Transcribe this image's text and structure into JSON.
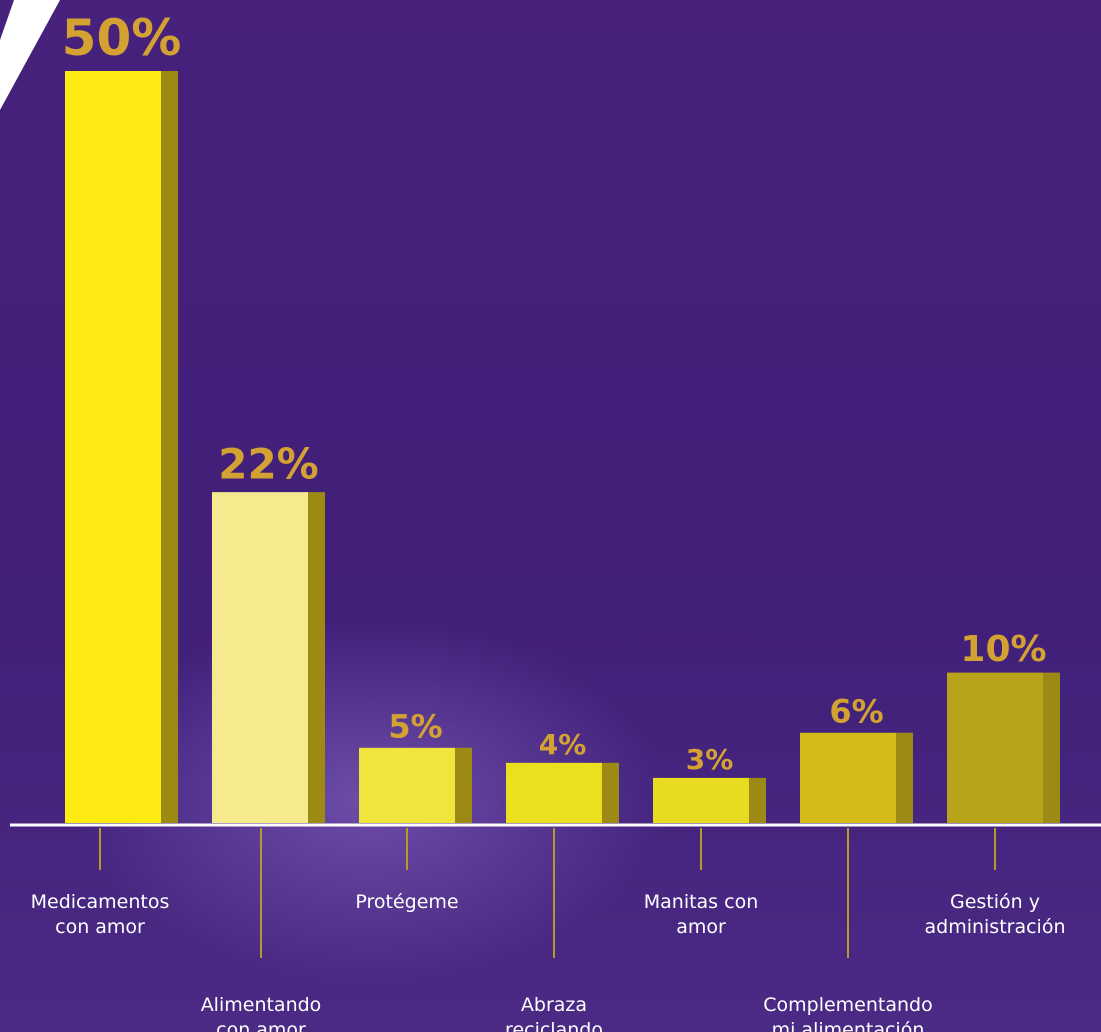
{
  "chart_data": {
    "type": "bar",
    "categories": [
      "Medicamentos con amor",
      "Alimentando con amor",
      "Protégeme",
      "Abraza reciclando",
      "Manitas con amor",
      "Complementando mi alimentación",
      "Gestión y administración"
    ],
    "category_lines": [
      [
        "Medicamentos",
        "con amor"
      ],
      [
        "Alimentando",
        "con amor"
      ],
      [
        "Protégeme"
      ],
      [
        "Abraza",
        "reciclando"
      ],
      [
        "Manitas con",
        "amor"
      ],
      [
        "Complementando",
        "mi alimentación"
      ],
      [
        "Gestión y",
        "administración"
      ]
    ],
    "values": [
      50,
      22,
      5,
      4,
      3,
      6,
      10
    ],
    "value_labels": [
      "50%",
      "22%",
      "5%",
      "4%",
      "3%",
      "6%",
      "10%"
    ],
    "label_position": [
      "upper",
      "lower",
      "upper",
      "lower",
      "upper",
      "lower",
      "upper"
    ],
    "bar_colors": [
      "#fdeb13",
      "#f5ea8e",
      "#f0e43d",
      "#ebe020",
      "#e7dc22",
      "#d3bb1a",
      "#b8a319"
    ],
    "side_color": "#9c8a14",
    "value_label_color": "#d4a232",
    "background_color": "#44207a",
    "title": "",
    "xlabel": "",
    "ylabel": "",
    "grid": false,
    "legend": "none"
  }
}
